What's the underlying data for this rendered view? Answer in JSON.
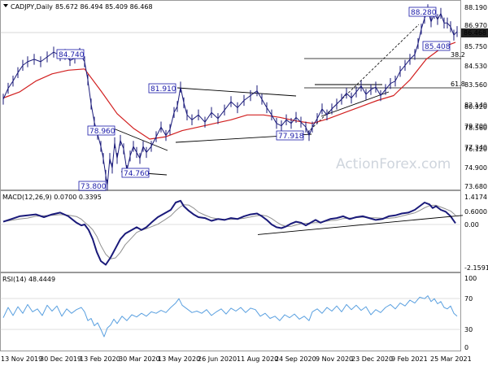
{
  "chart_data": [
    {
      "panel": "price",
      "type": "candlestick",
      "header": {
        "symbol": "CADJPY,Daily",
        "ohlc": "85.672 86.494 85.409 86.468"
      },
      "current_price_label": "86.468",
      "y_ticks": [
        "88.190",
        "86.970",
        "85.750",
        "84.530",
        "83.560",
        "82.140",
        "80.920",
        "79.700",
        "78.560",
        "77.340",
        "76.120",
        "74.900",
        "73.680"
      ],
      "x_ticks": [
        "13 Nov 2019",
        "30 Dec 2019",
        "13 Feb 2020",
        "30 Mar 2020",
        "13 May 2020",
        "26 Jun 2020",
        "11 Aug 2020",
        "24 Sep 2020",
        "9 Nov 2020",
        "23 Dec 2020",
        "9 Feb 2021",
        "25 Mar 2021"
      ],
      "series": [
        {
          "name": "price",
          "color": "#1a1a7a"
        },
        {
          "name": "55 EMA",
          "color": "#d22020"
        }
      ],
      "annotations": [
        {
          "text": "84.740",
          "boxed": true
        },
        {
          "text": "81.910",
          "boxed": true
        },
        {
          "text": "78.960",
          "boxed": true
        },
        {
          "text": "74.760",
          "boxed": true
        },
        {
          "text": "73.800",
          "boxed": true
        },
        {
          "text": "77.918",
          "boxed": true
        },
        {
          "text": "88.280",
          "boxed": true
        },
        {
          "text": "85.408",
          "boxed": true
        },
        {
          "text": "38.2",
          "boxed": false
        },
        {
          "text": "61.8",
          "boxed": false
        }
      ],
      "watermark": "ActionForex.com",
      "points": [
        [
          0,
          80.9
        ],
        [
          6,
          81.8
        ],
        [
          12,
          82.4
        ],
        [
          18,
          83.1
        ],
        [
          24,
          83.7
        ],
        [
          30,
          84.0
        ],
        [
          38,
          84.2
        ],
        [
          46,
          84.0
        ],
        [
          54,
          84.4
        ],
        [
          62,
          84.8
        ],
        [
          70,
          84.5
        ],
        [
          76,
          84.6
        ],
        [
          82,
          84.1
        ],
        [
          88,
          84.3
        ],
        [
          94,
          84.7
        ],
        [
          100,
          84.0
        ],
        [
          104,
          82.5
        ],
        [
          108,
          80.5
        ],
        [
          112,
          79.0
        ],
        [
          116,
          78.0
        ],
        [
          120,
          77.0
        ],
        [
          123,
          76.0
        ],
        [
          126,
          74.6
        ],
        [
          128,
          73.8
        ],
        [
          131,
          76.0
        ],
        [
          134,
          75.2
        ],
        [
          137,
          77.3
        ],
        [
          140,
          76.0
        ],
        [
          144,
          77.5
        ],
        [
          148,
          76.8
        ],
        [
          152,
          75.0
        ],
        [
          156,
          76.2
        ],
        [
          160,
          77.0
        ],
        [
          164,
          76.5
        ],
        [
          168,
          76.0
        ],
        [
          172,
          77.0
        ],
        [
          176,
          76.5
        ],
        [
          182,
          77.0
        ],
        [
          188,
          77.8
        ],
        [
          194,
          78.6
        ],
        [
          200,
          77.9
        ],
        [
          205,
          78.4
        ],
        [
          210,
          79.8
        ],
        [
          214,
          80.3
        ],
        [
          218,
          81.9
        ],
        [
          222,
          80.6
        ],
        [
          226,
          79.6
        ],
        [
          232,
          79.2
        ],
        [
          240,
          79.6
        ],
        [
          248,
          79.0
        ],
        [
          256,
          79.8
        ],
        [
          264,
          79.3
        ],
        [
          272,
          80.0
        ],
        [
          280,
          80.7
        ],
        [
          288,
          80.2
        ],
        [
          296,
          80.8
        ],
        [
          304,
          81.2
        ],
        [
          312,
          81.6
        ],
        [
          318,
          80.9
        ],
        [
          324,
          80.2
        ],
        [
          330,
          79.6
        ],
        [
          336,
          78.9
        ],
        [
          342,
          78.7
        ],
        [
          348,
          79.2
        ],
        [
          354,
          78.9
        ],
        [
          360,
          79.4
        ],
        [
          366,
          79.0
        ],
        [
          372,
          78.6
        ],
        [
          376,
          77.9
        ],
        [
          380,
          78.6
        ],
        [
          386,
          79.3
        ],
        [
          392,
          80.1
        ],
        [
          398,
          79.6
        ],
        [
          404,
          80.1
        ],
        [
          410,
          80.5
        ],
        [
          416,
          80.9
        ],
        [
          422,
          81.4
        ],
        [
          428,
          81.0
        ],
        [
          434,
          81.5
        ],
        [
          440,
          82.0
        ],
        [
          446,
          81.3
        ],
        [
          452,
          81.7
        ],
        [
          458,
          81.9
        ],
        [
          464,
          81.2
        ],
        [
          470,
          81.7
        ],
        [
          476,
          82.2
        ],
        [
          482,
          82.4
        ],
        [
          488,
          83.2
        ],
        [
          494,
          83.7
        ],
        [
          500,
          84.2
        ],
        [
          506,
          84.6
        ],
        [
          510,
          85.5
        ],
        [
          514,
          86.7
        ],
        [
          518,
          87.6
        ],
        [
          522,
          88.3
        ],
        [
          526,
          87.3
        ],
        [
          530,
          88.0
        ],
        [
          534,
          87.5
        ],
        [
          538,
          88.0
        ],
        [
          542,
          87.2
        ],
        [
          546,
          87.2
        ],
        [
          550,
          86.9
        ],
        [
          554,
          86.2
        ],
        [
          558,
          86.5
        ]
      ],
      "ema": [
        [
          0,
          81.0
        ],
        [
          20,
          81.5
        ],
        [
          40,
          82.4
        ],
        [
          60,
          83.0
        ],
        [
          80,
          83.3
        ],
        [
          100,
          83.4
        ],
        [
          120,
          81.6
        ],
        [
          140,
          79.7
        ],
        [
          160,
          78.5
        ],
        [
          180,
          77.6
        ],
        [
          200,
          77.8
        ],
        [
          220,
          78.3
        ],
        [
          240,
          78.6
        ],
        [
          260,
          78.9
        ],
        [
          280,
          79.2
        ],
        [
          300,
          79.6
        ],
        [
          320,
          79.6
        ],
        [
          340,
          79.4
        ],
        [
          360,
          79.1
        ],
        [
          380,
          78.9
        ],
        [
          400,
          79.3
        ],
        [
          420,
          79.8
        ],
        [
          440,
          80.3
        ],
        [
          460,
          80.8
        ],
        [
          480,
          81.2
        ],
        [
          500,
          82.5
        ],
        [
          520,
          84.2
        ],
        [
          540,
          85.2
        ],
        [
          556,
          85.6
        ]
      ]
    },
    {
      "panel": "macd",
      "type": "line",
      "header": "MACD(12,26,9) 0.0700 0.3395",
      "y_ticks": [
        "1.4174",
        "0.6000",
        "0.00",
        "-2.1591"
      ],
      "series": [
        {
          "name": "MACD",
          "color": "#1a1a7a"
        },
        {
          "name": "Signal",
          "color": "#909090"
        }
      ],
      "points": [
        [
          0,
          0.15
        ],
        [
          10,
          0.3
        ],
        [
          20,
          0.45
        ],
        [
          30,
          0.5
        ],
        [
          40,
          0.55
        ],
        [
          50,
          0.4
        ],
        [
          60,
          0.55
        ],
        [
          70,
          0.65
        ],
        [
          80,
          0.45
        ],
        [
          90,
          0.1
        ],
        [
          96,
          -0.05
        ],
        [
          100,
          0.0
        ],
        [
          105,
          -0.3
        ],
        [
          110,
          -0.8
        ],
        [
          115,
          -1.5
        ],
        [
          120,
          -2.0
        ],
        [
          126,
          -2.2
        ],
        [
          132,
          -1.8
        ],
        [
          138,
          -1.3
        ],
        [
          144,
          -0.8
        ],
        [
          150,
          -0.5
        ],
        [
          158,
          -0.3
        ],
        [
          164,
          -0.15
        ],
        [
          170,
          -0.3
        ],
        [
          176,
          -0.15
        ],
        [
          182,
          0.1
        ],
        [
          190,
          0.4
        ],
        [
          198,
          0.6
        ],
        [
          206,
          0.8
        ],
        [
          212,
          1.2
        ],
        [
          218,
          1.3
        ],
        [
          222,
          1.0
        ],
        [
          228,
          0.75
        ],
        [
          234,
          0.55
        ],
        [
          240,
          0.4
        ],
        [
          248,
          0.35
        ],
        [
          256,
          0.2
        ],
        [
          264,
          0.3
        ],
        [
          272,
          0.25
        ],
        [
          280,
          0.35
        ],
        [
          288,
          0.3
        ],
        [
          296,
          0.45
        ],
        [
          304,
          0.55
        ],
        [
          312,
          0.6
        ],
        [
          318,
          0.45
        ],
        [
          324,
          0.25
        ],
        [
          330,
          0.0
        ],
        [
          336,
          -0.15
        ],
        [
          342,
          -0.2
        ],
        [
          348,
          -0.1
        ],
        [
          354,
          0.05
        ],
        [
          360,
          0.15
        ],
        [
          366,
          0.1
        ],
        [
          372,
          -0.05
        ],
        [
          378,
          0.1
        ],
        [
          384,
          0.25
        ],
        [
          390,
          0.1
        ],
        [
          396,
          0.2
        ],
        [
          402,
          0.3
        ],
        [
          410,
          0.35
        ],
        [
          418,
          0.45
        ],
        [
          426,
          0.3
        ],
        [
          434,
          0.4
        ],
        [
          442,
          0.45
        ],
        [
          450,
          0.35
        ],
        [
          458,
          0.25
        ],
        [
          466,
          0.3
        ],
        [
          474,
          0.45
        ],
        [
          482,
          0.5
        ],
        [
          490,
          0.6
        ],
        [
          498,
          0.65
        ],
        [
          506,
          0.8
        ],
        [
          512,
          1.0
        ],
        [
          518,
          1.2
        ],
        [
          524,
          1.1
        ],
        [
          528,
          0.9
        ],
        [
          532,
          1.0
        ],
        [
          538,
          0.8
        ],
        [
          544,
          0.7
        ],
        [
          550,
          0.45
        ],
        [
          556,
          0.07
        ]
      ],
      "trendline": [
        [
          313,
          -0.55
        ],
        [
          565,
          0.5
        ]
      ]
    },
    {
      "panel": "rsi",
      "type": "line",
      "header": "RSI(14) 48.4449",
      "y_ticks": [
        "100",
        "70",
        "30",
        "0"
      ],
      "series": [
        {
          "name": "RSI",
          "color": "#5aa0e0"
        }
      ],
      "points": [
        [
          0,
          46
        ],
        [
          6,
          60
        ],
        [
          12,
          49
        ],
        [
          18,
          61
        ],
        [
          24,
          52
        ],
        [
          30,
          64
        ],
        [
          36,
          54
        ],
        [
          42,
          58
        ],
        [
          48,
          49
        ],
        [
          54,
          63
        ],
        [
          60,
          55
        ],
        [
          66,
          62
        ],
        [
          72,
          48
        ],
        [
          78,
          58
        ],
        [
          84,
          52
        ],
        [
          90,
          57
        ],
        [
          96,
          60
        ],
        [
          100,
          54
        ],
        [
          104,
          42
        ],
        [
          108,
          45
        ],
        [
          112,
          35
        ],
        [
          116,
          39
        ],
        [
          120,
          30
        ],
        [
          124,
          20
        ],
        [
          128,
          32
        ],
        [
          132,
          36
        ],
        [
          136,
          44
        ],
        [
          140,
          38
        ],
        [
          146,
          48
        ],
        [
          152,
          42
        ],
        [
          158,
          50
        ],
        [
          164,
          47
        ],
        [
          170,
          52
        ],
        [
          176,
          48
        ],
        [
          182,
          54
        ],
        [
          188,
          52
        ],
        [
          194,
          56
        ],
        [
          200,
          53
        ],
        [
          206,
          60
        ],
        [
          212,
          66
        ],
        [
          216,
          72
        ],
        [
          220,
          63
        ],
        [
          226,
          58
        ],
        [
          232,
          53
        ],
        [
          238,
          55
        ],
        [
          244,
          52
        ],
        [
          250,
          57
        ],
        [
          256,
          49
        ],
        [
          262,
          54
        ],
        [
          268,
          58
        ],
        [
          274,
          51
        ],
        [
          280,
          59
        ],
        [
          286,
          55
        ],
        [
          292,
          60
        ],
        [
          298,
          53
        ],
        [
          304,
          59
        ],
        [
          310,
          57
        ],
        [
          316,
          48
        ],
        [
          322,
          52
        ],
        [
          328,
          45
        ],
        [
          334,
          48
        ],
        [
          340,
          42
        ],
        [
          346,
          50
        ],
        [
          352,
          46
        ],
        [
          358,
          51
        ],
        [
          364,
          44
        ],
        [
          370,
          48
        ],
        [
          376,
          42
        ],
        [
          380,
          54
        ],
        [
          386,
          58
        ],
        [
          392,
          52
        ],
        [
          398,
          60
        ],
        [
          404,
          55
        ],
        [
          410,
          62
        ],
        [
          416,
          54
        ],
        [
          422,
          64
        ],
        [
          428,
          57
        ],
        [
          434,
          63
        ],
        [
          440,
          56
        ],
        [
          446,
          61
        ],
        [
          452,
          50
        ],
        [
          458,
          57
        ],
        [
          464,
          53
        ],
        [
          470,
          60
        ],
        [
          476,
          64
        ],
        [
          482,
          58
        ],
        [
          488,
          66
        ],
        [
          494,
          62
        ],
        [
          500,
          70
        ],
        [
          506,
          66
        ],
        [
          512,
          74
        ],
        [
          518,
          72
        ],
        [
          522,
          76
        ],
        [
          526,
          68
        ],
        [
          530,
          72
        ],
        [
          534,
          65
        ],
        [
          538,
          68
        ],
        [
          542,
          60
        ],
        [
          546,
          58
        ],
        [
          550,
          62
        ],
        [
          554,
          52
        ],
        [
          558,
          48
        ]
      ]
    }
  ]
}
